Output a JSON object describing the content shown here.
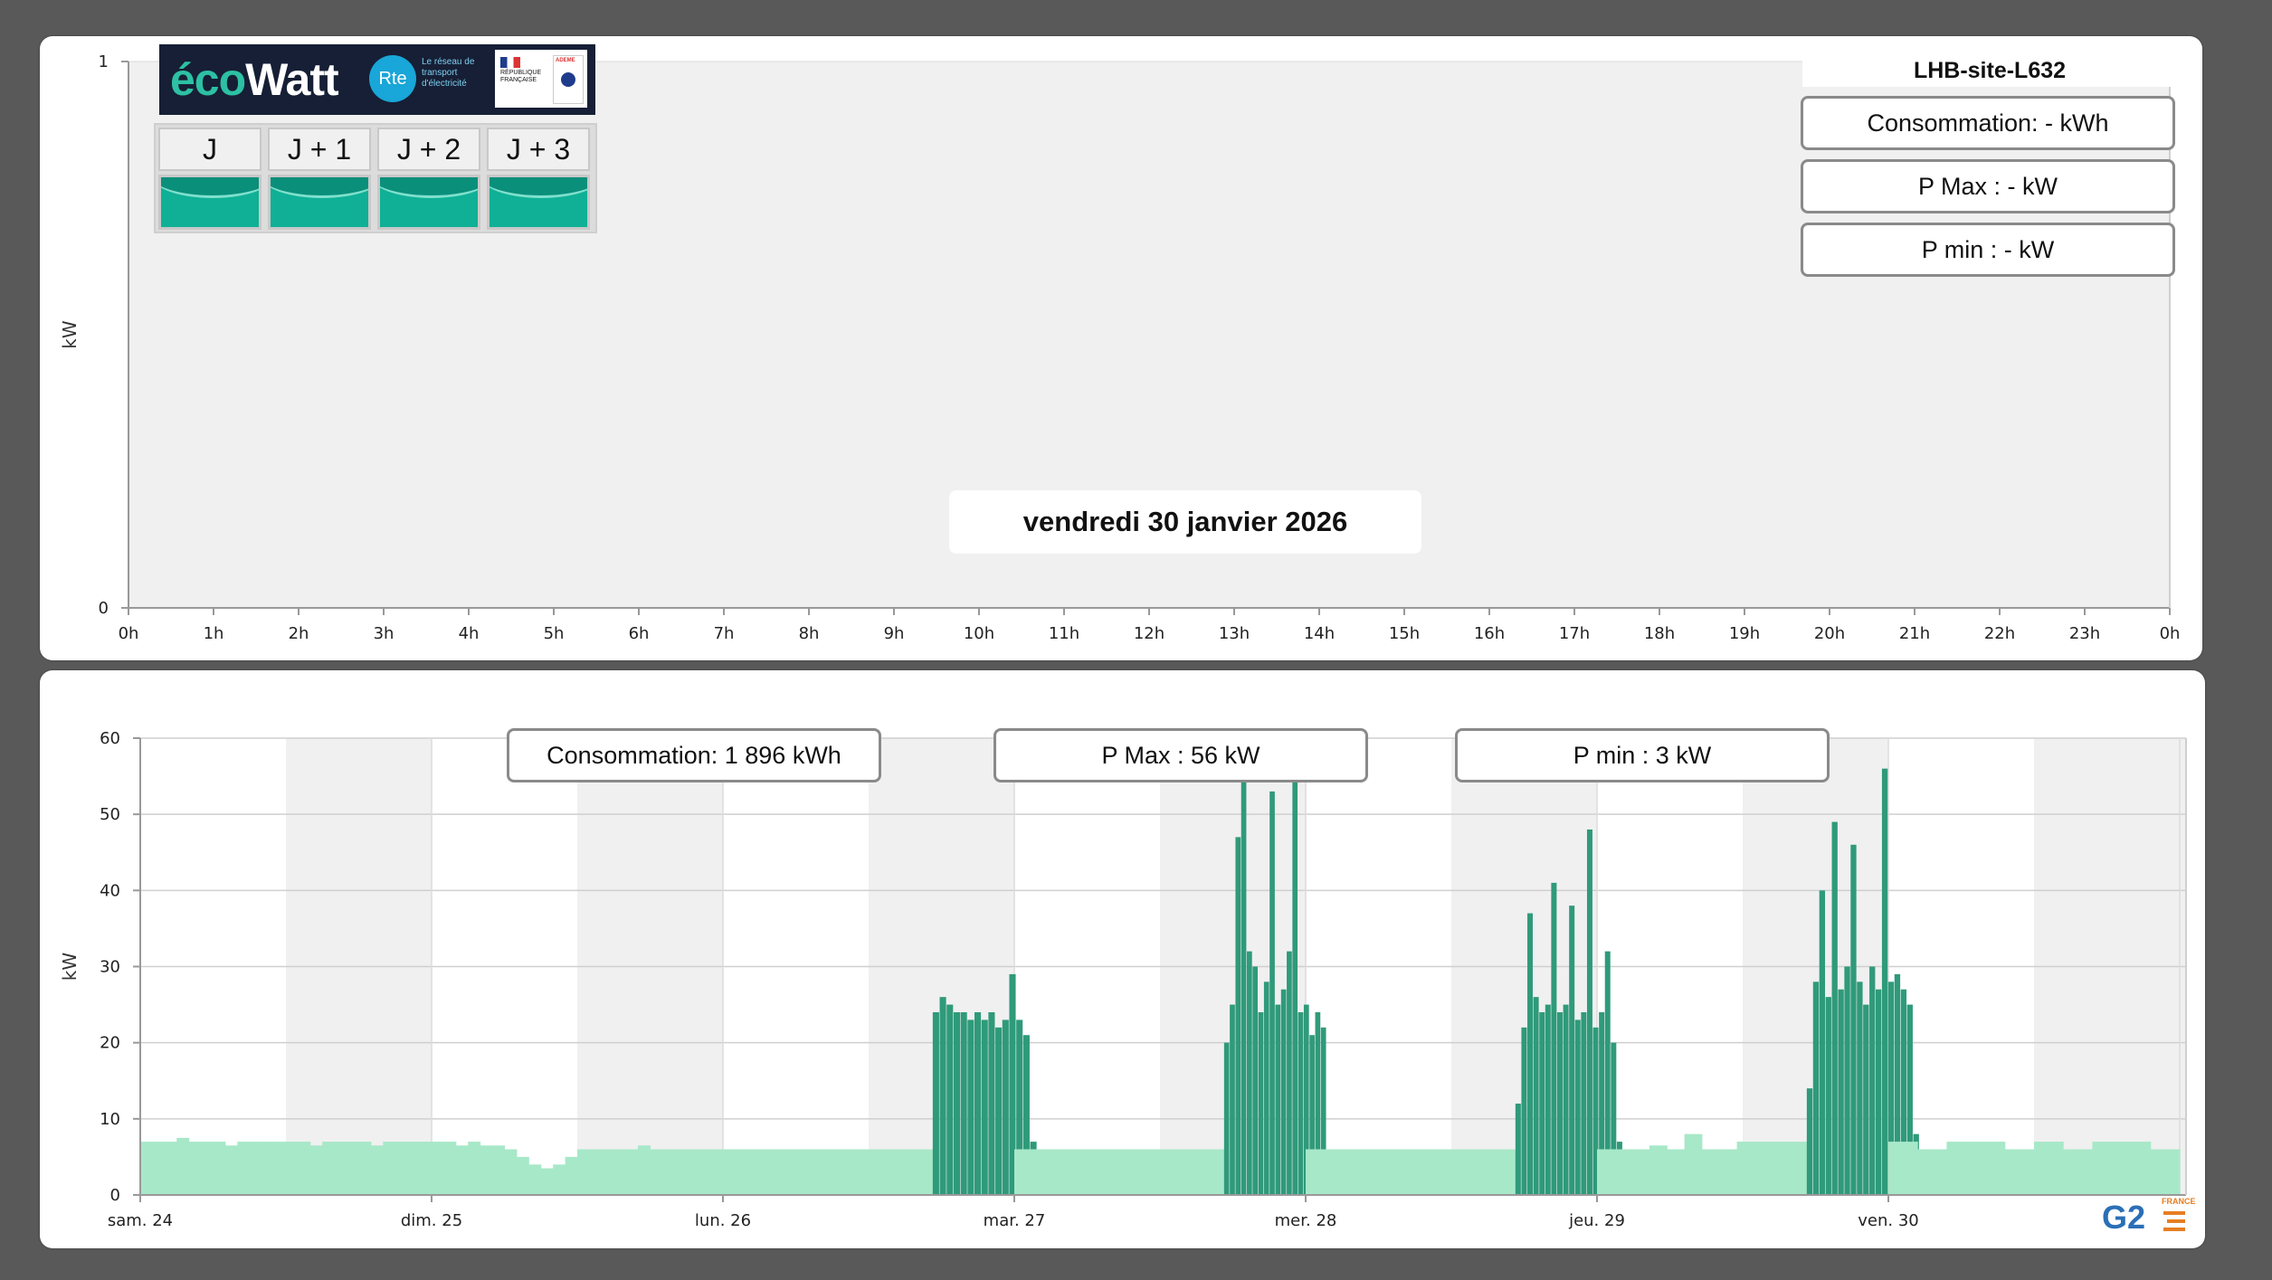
{
  "top_panel": {
    "site": "LHB-site-L632",
    "consumption": "Consommation: - kWh",
    "pmax": "P Max :  - kW",
    "pmin": "P min : - kW",
    "date": "vendredi 30 janvier 2026"
  },
  "ecowatt": {
    "logo": "écoWatt",
    "rte_logo": "Rte",
    "rte_text": "Le réseau de transport d'électricité",
    "rf_text": "RÉPUBLIQUE FRANÇAISE",
    "ademe_text": "ADEME",
    "days": [
      {
        "label": "J",
        "status_color": "#0fb096"
      },
      {
        "label": "J + 1",
        "status_color": "#0fb096"
      },
      {
        "label": "J + 2",
        "status_color": "#0fb096"
      },
      {
        "label": "J + 3",
        "status_color": "#0fb096"
      }
    ]
  },
  "bottom_panel": {
    "consumption": "Consommation: 1 896 kWh",
    "pmax": "P Max :  56 kW",
    "pmin": "P min : 3 kW"
  },
  "logo_text": "G2",
  "logo_badge": "FRANCE",
  "chart_data": [
    {
      "type": "area",
      "ylabel": "kW",
      "ylim": [
        0,
        1
      ],
      "yticks": [
        0,
        1
      ],
      "x_ticks": [
        "0h",
        "1h",
        "2h",
        "3h",
        "4h",
        "5h",
        "6h",
        "7h",
        "8h",
        "9h",
        "10h",
        "11h",
        "12h",
        "13h",
        "14h",
        "15h",
        "16h",
        "17h",
        "18h",
        "19h",
        "20h",
        "21h",
        "22h",
        "23h",
        "0h"
      ],
      "series": [],
      "background_color": "#f0f0f0",
      "grid": false
    },
    {
      "type": "bar",
      "ylabel": "kW",
      "ylim": [
        0,
        60
      ],
      "yticks": [
        0,
        10,
        20,
        30,
        40,
        50,
        60
      ],
      "x_ticks": [
        "sam. 24",
        "dim. 25",
        "lun. 26",
        "mar. 27",
        "mer. 28",
        "jeu. 29",
        "ven. 30"
      ],
      "x_range_days": [
        0,
        7
      ],
      "grid": true,
      "day_band_colors": [
        "#ffffff",
        "#f0f0f0"
      ],
      "base_color": "#a7e8c8",
      "peak_color": "#2f9a7a",
      "series": [
        {
          "days": [
            {
              "day": "sam. 24",
              "base": [
                7,
                7,
                7,
                7.5,
                7,
                7,
                7,
                6.5,
                7,
                7,
                7,
                7,
                7,
                7,
                6.5,
                7,
                7,
                7,
                7,
                6.5,
                7,
                7,
                7,
                7
              ]
            },
            {
              "day": "dim. 25",
              "base": [
                7,
                7,
                6.5,
                7,
                6.5,
                6.5,
                6,
                5,
                4,
                3.5,
                4,
                5,
                6,
                6,
                6,
                6,
                6,
                6.5,
                6,
                6,
                6,
                6,
                6,
                6
              ]
            },
            {
              "day": "lun. 26",
              "base": [
                6,
                6,
                6,
                6,
                6,
                6,
                6,
                6,
                6,
                6,
                6,
                6,
                6
              ],
              "peak": [
                24,
                26,
                25,
                24,
                24,
                23,
                24,
                23,
                24,
                22,
                23,
                29,
                23,
                21,
                7,
                5,
                4,
                3
              ]
            },
            {
              "day": "mar. 27",
              "base": [
                6,
                6,
                6,
                6,
                6,
                6,
                6,
                6,
                6,
                6,
                6,
                6
              ],
              "peak": [
                20,
                25,
                47,
                56,
                32,
                30,
                24,
                28,
                53,
                25,
                27,
                32,
                56,
                24,
                25,
                21,
                24,
                22,
                6,
                5,
                4,
                3
              ]
            },
            {
              "day": "mer. 28",
              "base": [
                6,
                6,
                6,
                6,
                6,
                6,
                6,
                6,
                6,
                6,
                6,
                6
              ],
              "peak": [
                12,
                22,
                37,
                26,
                24,
                25,
                41,
                24,
                25,
                38,
                23,
                24,
                48,
                22,
                24,
                32,
                20,
                7,
                5,
                4,
                3
              ]
            },
            {
              "day": "jeu. 29",
              "base": [
                6,
                6,
                6,
                6.5,
                6,
                8,
                6,
                6,
                7,
                7,
                7,
                7
              ],
              "peak": [
                14,
                28,
                40,
                26,
                49,
                27,
                30,
                46,
                28,
                25,
                30,
                27,
                56,
                28,
                29,
                27,
                25,
                8,
                6,
                5
              ]
            },
            {
              "day": "ven. 30",
              "base": [
                7,
                6,
                7,
                7,
                6,
                7,
                6,
                7,
                7,
                6
              ]
            }
          ]
        }
      ]
    }
  ]
}
